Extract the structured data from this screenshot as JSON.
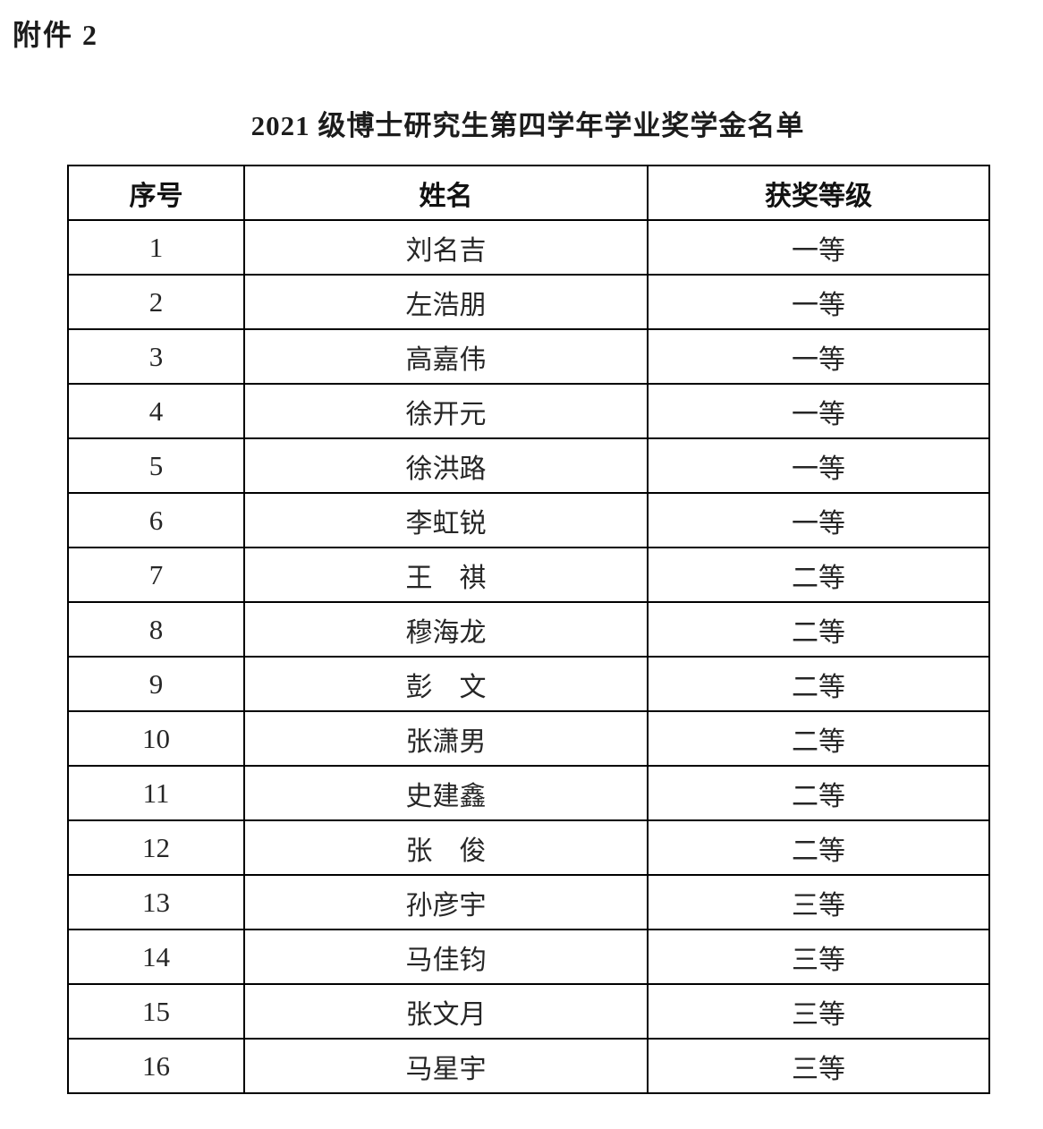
{
  "document": {
    "attachment_label": "附件 2",
    "title": "2021 级博士研究生第四学年学业奖学金名单"
  },
  "table": {
    "headers": [
      "序号",
      "姓名",
      "获奖等级"
    ],
    "rows": [
      {
        "no": "1",
        "name": "刘名吉",
        "level": "一等"
      },
      {
        "no": "2",
        "name": "左浩朋",
        "level": "一等"
      },
      {
        "no": "3",
        "name": "高嘉伟",
        "level": "一等"
      },
      {
        "no": "4",
        "name": "徐开元",
        "level": "一等"
      },
      {
        "no": "5",
        "name": "徐洪路",
        "level": "一等"
      },
      {
        "no": "6",
        "name": "李虹锐",
        "level": "一等"
      },
      {
        "no": "7",
        "name": "王　祺",
        "level": "二等"
      },
      {
        "no": "8",
        "name": "穆海龙",
        "level": "二等"
      },
      {
        "no": "9",
        "name": "彭　文",
        "level": "二等"
      },
      {
        "no": "10",
        "name": "张潇男",
        "level": "二等"
      },
      {
        "no": "11",
        "name": "史建鑫",
        "level": "二等"
      },
      {
        "no": "12",
        "name": "张　俊",
        "level": "二等"
      },
      {
        "no": "13",
        "name": "孙彦宇",
        "level": "三等"
      },
      {
        "no": "14",
        "name": "马佳钧",
        "level": "三等"
      },
      {
        "no": "15",
        "name": "张文月",
        "level": "三等"
      },
      {
        "no": "16",
        "name": "马星宇",
        "level": "三等"
      }
    ]
  }
}
